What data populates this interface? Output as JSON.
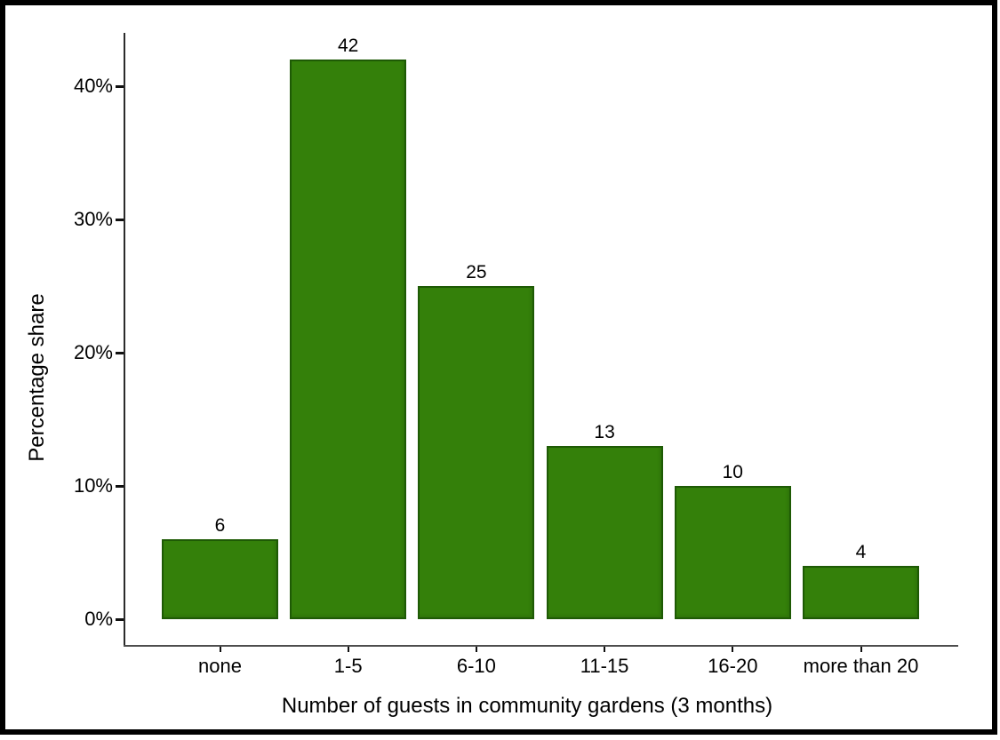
{
  "frame": {
    "border_color": "#000000",
    "background_color": "#ffffff"
  },
  "chart_data": {
    "type": "bar",
    "title": "",
    "categories": [
      "none",
      "1-5",
      "6-10",
      "11-15",
      "16-20",
      "more than 20"
    ],
    "values": [
      6,
      42,
      25,
      13,
      10,
      4
    ],
    "value_labels": [
      "6",
      "42",
      "25",
      "13",
      "10",
      "4"
    ],
    "xlabel": "Number of guests in community gardens (3 months)",
    "ylabel": "Percentage share",
    "ylim": [
      0,
      44
    ],
    "y_ticks": [
      {
        "value": 0,
        "label": "0%"
      },
      {
        "value": 10,
        "label": "10%"
      },
      {
        "value": 20,
        "label": "20%"
      },
      {
        "value": 30,
        "label": "30%"
      },
      {
        "value": 40,
        "label": "40%"
      }
    ],
    "grid": false,
    "legend": null,
    "bar_fill_color": "#34800A",
    "bar_border_color": "#1E5A05",
    "y_axis_color": "#2b2b2b",
    "x_axis_color": "#4d4d4d",
    "text_color": "#000000"
  }
}
